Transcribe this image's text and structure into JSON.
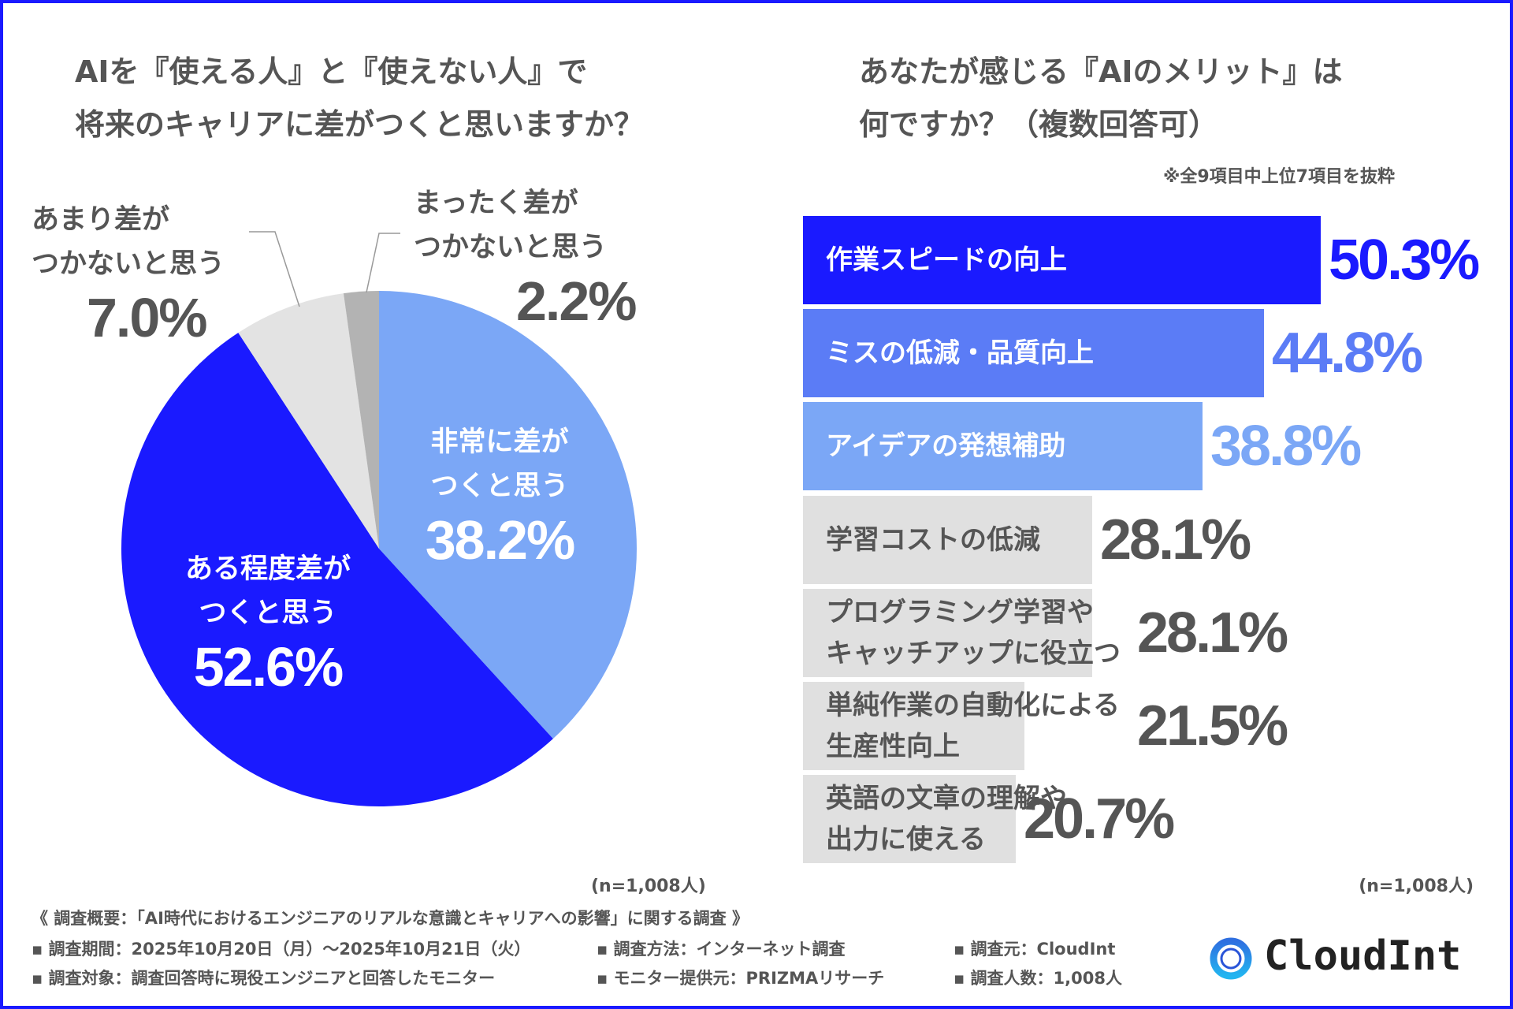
{
  "colors": {
    "border": "#1a1aff",
    "accent": "#1a1aff",
    "mid_blue": "#5b7cf6",
    "light_blue": "#7ba7f6",
    "gray": "#e0e0e0",
    "dark_gray": "#b3b3b3",
    "text": "#555555"
  },
  "left": {
    "title_line1": "AIを『使える人』と『使えない人』で",
    "title_line2": "将来のキャリアに差がつくと思いますか？",
    "sample": "(n=1,008人)"
  },
  "right": {
    "title_line1": "あなたが感じる『AIのメリット』は",
    "title_line2": "何ですか？（複数回答可）",
    "note": "※全9項目中上位7項目を抜粋",
    "sample": "(n=1,008人)"
  },
  "chart_data": [
    {
      "type": "pie",
      "start": "top",
      "direction": "clockwise",
      "slices": [
        {
          "label_line1": "非常に差が",
          "label_line2": "つくと思う",
          "value": 38.2,
          "value_label": "38.2%",
          "color": "#7ba7f6"
        },
        {
          "label_line1": "ある程度差が",
          "label_line2": "つくと思う",
          "value": 52.6,
          "value_label": "52.6%",
          "color": "#1a1aff"
        },
        {
          "label_line1": "あまり差が",
          "label_line2": "つかないと思う",
          "value": 7.0,
          "value_label": "7.0%",
          "color": "#e3e3e3"
        },
        {
          "label_line1": "まったく差が",
          "label_line2": "つかないと思う",
          "value": 2.2,
          "value_label": "2.2%",
          "color": "#b3b3b3"
        }
      ]
    },
    {
      "type": "bar",
      "orientation": "horizontal",
      "bars": [
        {
          "label_line1": "作業スピードの向上",
          "label_line2": "",
          "value": 50.3,
          "value_label": "50.3%",
          "color": "#1a1aff",
          "label_color": "#ffffff",
          "value_color": "#1a1aff"
        },
        {
          "label_line1": "ミスの低減・品質向上",
          "label_line2": "",
          "value": 44.8,
          "value_label": "44.8%",
          "color": "#5b7cf6",
          "label_color": "#ffffff",
          "value_color": "#5b7cf6"
        },
        {
          "label_line1": "アイデアの発想補助",
          "label_line2": "",
          "value": 38.8,
          "value_label": "38.8%",
          "color": "#7ba7f6",
          "label_color": "#ffffff",
          "value_color": "#7ba7f6"
        },
        {
          "label_line1": "学習コストの低減",
          "label_line2": "",
          "value": 28.1,
          "value_label": "28.1%",
          "color": "#e0e0e0",
          "label_color": "#555555",
          "value_color": "#555555"
        },
        {
          "label_line1": "プログラミング学習や",
          "label_line2": "キャッチアップに役立つ",
          "value": 28.1,
          "value_label": "28.1%",
          "color": "#e0e0e0",
          "label_color": "#555555",
          "value_color": "#555555"
        },
        {
          "label_line1": "単純作業の自動化による",
          "label_line2": "生産性向上",
          "value": 21.5,
          "value_label": "21.5%",
          "color": "#e0e0e0",
          "label_color": "#555555",
          "value_color": "#555555"
        },
        {
          "label_line1": "英語の文章の理解や",
          "label_line2": "出力に使える",
          "value": 20.7,
          "value_label": "20.7%",
          "color": "#e0e0e0",
          "label_color": "#555555",
          "value_color": "#555555"
        }
      ]
    }
  ],
  "footer": {
    "overview": "《 調査概要：「AI時代におけるエンジニアのリアルな意識とキャリアへの影響」に関する調査 》",
    "items": [
      "▪ 調査期間：2025年10月20日（月）〜2025年10月21日（火）",
      "▪ 調査方法：インターネット調査",
      "▪ 調査元：CloudInt",
      "▪ 調査対象：調査回答時に現役エンジニアと回答したモニター",
      "▪ モニター提供元：PRIZMAリサーチ",
      "▪ 調査人数：1,008人"
    ]
  },
  "logo": {
    "text": "CloudInt",
    "icon": "ring-logo-icon"
  }
}
